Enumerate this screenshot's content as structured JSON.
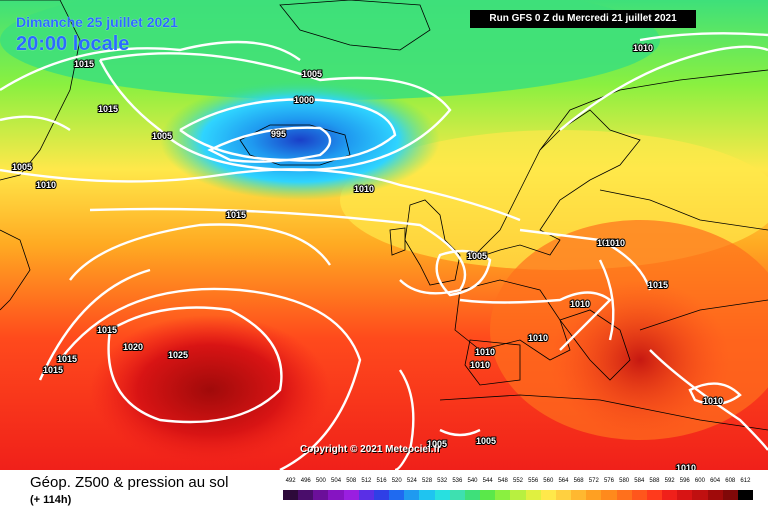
{
  "header": {
    "valid_date": "Dimanche 25 juillet 2021",
    "valid_time": "20:00 locale",
    "run_info": "Run GFS 0 Z du Mercredi 21 juillet 2021"
  },
  "map": {
    "copyright": "Copyright © 2021 Meteociel.fr",
    "isobar_labels": [
      {
        "text": "1015"
      },
      {
        "text": "1015"
      },
      {
        "text": "1005"
      },
      {
        "text": "1010"
      },
      {
        "text": "1005"
      },
      {
        "text": "1000"
      },
      {
        "text": "995"
      },
      {
        "text": "1005"
      },
      {
        "text": "1010"
      },
      {
        "text": "1010"
      },
      {
        "text": "1015"
      },
      {
        "text": "1005"
      },
      {
        "text": "1010"
      },
      {
        "text": "1010"
      },
      {
        "text": "1010"
      },
      {
        "text": "1015"
      },
      {
        "text": "1015"
      },
      {
        "text": "1020"
      },
      {
        "text": "1025"
      },
      {
        "text": "1015"
      },
      {
        "text": "1015"
      },
      {
        "text": "1010"
      },
      {
        "text": "1010"
      },
      {
        "text": "1005"
      },
      {
        "text": "1005"
      },
      {
        "text": "1010"
      },
      {
        "text": "1010"
      },
      {
        "text": "1010"
      }
    ],
    "colors": {
      "low_pressure_core": "#1a3fc8",
      "trough": "#2fd4ff",
      "cool": "#3ee07a",
      "mild": "#b8f040",
      "neutral": "#ffe84a",
      "warm": "#ffaa22",
      "hot": "#ff4a1c",
      "hottest": "#c01010",
      "isobar": "#ffffff",
      "coastline": "#000000"
    }
  },
  "footer": {
    "title": "Géop. Z500 & pression au sol",
    "subtitle": "(+ 114h)"
  },
  "legend": {
    "ticks": [
      "492",
      "496",
      "500",
      "504",
      "508",
      "512",
      "516",
      "520",
      "524",
      "528",
      "532",
      "536",
      "540",
      "544",
      "548",
      "552",
      "556",
      "560",
      "564",
      "568",
      "572",
      "576",
      "580",
      "584",
      "588",
      "592",
      "596",
      "600",
      "604",
      "608",
      "612"
    ],
    "colors": [
      "#2d0a3a",
      "#4a0d6b",
      "#6b0f9a",
      "#8614c2",
      "#9a1fe0",
      "#5a2fe6",
      "#2f3fe6",
      "#1f6af0",
      "#1f9af0",
      "#1fc4f0",
      "#28e0e0",
      "#3ee0b0",
      "#3ee07a",
      "#5ae84a",
      "#8af040",
      "#b8f040",
      "#e0f040",
      "#ffe84a",
      "#ffd040",
      "#ffb830",
      "#ffa022",
      "#ff8a1c",
      "#ff701c",
      "#ff561c",
      "#ff3a1c",
      "#f0201a",
      "#d81414",
      "#c01010",
      "#a00a0a",
      "#800808",
      "#000000"
    ]
  }
}
